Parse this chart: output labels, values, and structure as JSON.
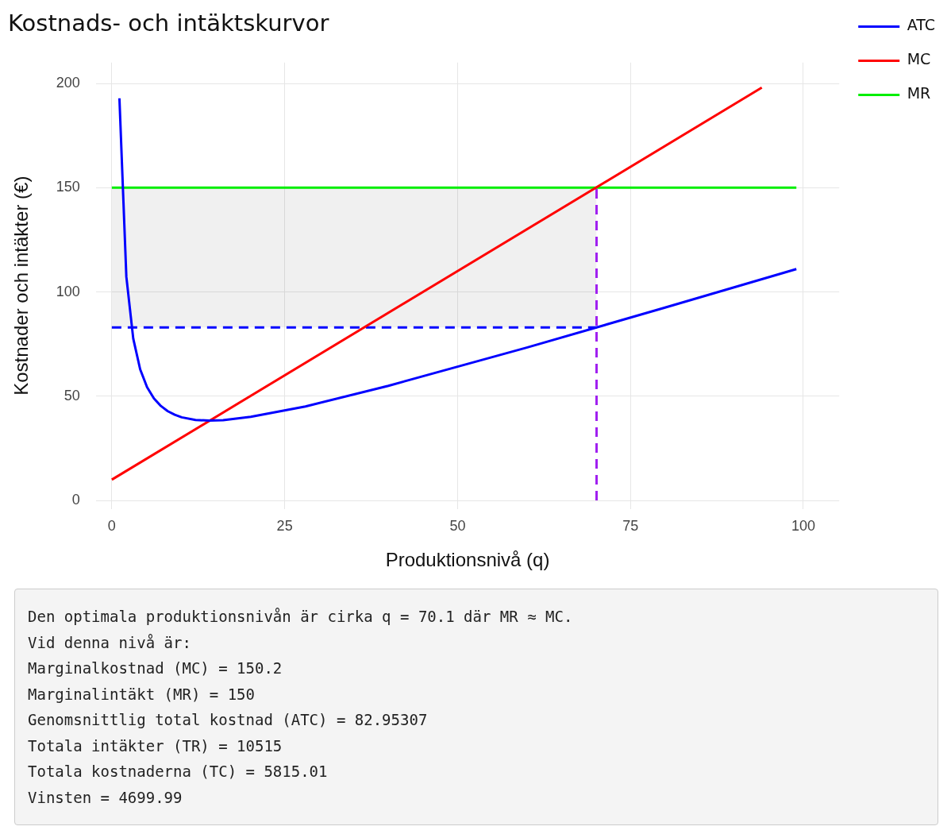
{
  "chart_data": {
    "type": "line",
    "title": "Kostnads- och intäktskurvor",
    "xlabel": "Produktionsnivå (q)",
    "ylabel": "Kostnader och intäkter (€)",
    "xlim": [
      -2.3,
      105.2
    ],
    "xticks": [
      0,
      25,
      50,
      75,
      100
    ],
    "ylim": [
      -4,
      210
    ],
    "yticks": [
      0,
      50,
      100,
      150,
      200
    ],
    "grid": true,
    "legend": "top right",
    "marker": "none",
    "series": [
      {
        "name": "ATC",
        "color": "#0000ff",
        "x": [
          1.1,
          2.1,
          3.1,
          4.1,
          5.1,
          6.1,
          7.1,
          8.1,
          9.1,
          10.1,
          12.1,
          14.1,
          16.1,
          20.1,
          28,
          40,
          60,
          80,
          99
        ],
        "values": [
          192.9,
          107.3,
          77.6,
          62.9,
          54.3,
          48.9,
          45.3,
          42.8,
          41.1,
          39.9,
          38.6,
          38.3,
          38.5,
          40.1,
          45.1,
          55,
          73.3,
          92.5,
          111
        ]
      },
      {
        "name": "MC",
        "color": "#ff0000",
        "x": [
          0,
          94
        ],
        "values": [
          10,
          198
        ]
      },
      {
        "name": "MR",
        "color": "#00ee00",
        "x": [
          0,
          99
        ],
        "values": [
          150,
          150
        ]
      },
      {
        "color": "#0000ff",
        "line_style": "dashed",
        "x": [
          0,
          70.1
        ],
        "values": [
          83,
          83
        ],
        "lower": [
          83,
          83
        ],
        "upper": [
          150,
          150
        ]
      },
      {
        "color": "#a020f0",
        "line_style": "dashed",
        "x": [
          70.1,
          70.1
        ],
        "values": [
          0,
          150
        ]
      }
    ],
    "annotations": [
      "Den optimala produktionsnivån är cirka q = 70.1 där MR ≈ MC.",
      "Vid denna nivå är:",
      "Marginalkostnad (MC) = 150.2",
      "Marginalintäkt (MR) = 150",
      "Genomsnittlig total kostnad (ATC) = 82.95307",
      "Totala intäkter (TR) = 10515",
      "Totala kostnaderna (TC) = 5815.01",
      "Vinsten = 4699.99"
    ]
  }
}
